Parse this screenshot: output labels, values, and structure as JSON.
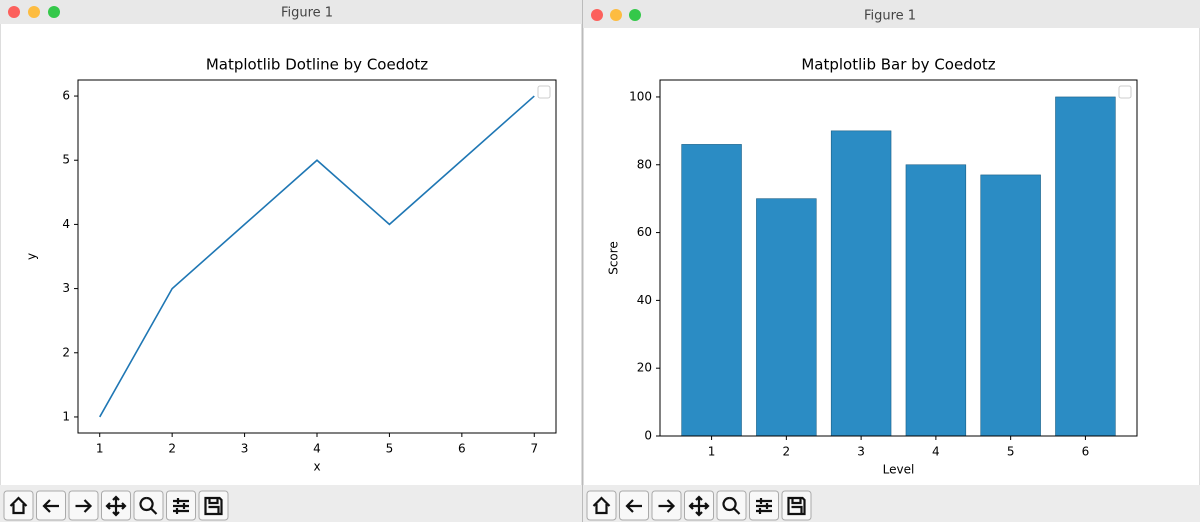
{
  "windows": [
    {
      "title": "Figure 1"
    },
    {
      "title": "Figure 1"
    }
  ],
  "chart_data": [
    {
      "type": "line",
      "title": "Matplotlib Dotline by Coedotz",
      "x_label": "x",
      "y_label": "y",
      "x": [
        1,
        2,
        3,
        4,
        5,
        6,
        7
      ],
      "y": [
        1,
        3,
        4,
        5,
        4,
        5,
        6
      ],
      "color": "#1f77b4",
      "xlim": [
        0.7,
        7.3
      ],
      "ylim": [
        0.75,
        6.25
      ],
      "xticks": [
        1,
        2,
        3,
        4,
        5,
        6,
        7
      ],
      "yticks": [
        1,
        2,
        3,
        4,
        5,
        6
      ],
      "legend": "upper right"
    },
    {
      "type": "bar",
      "title": "Matplotlib Bar by Coedotz",
      "x_label": "Level",
      "y_label": "Score",
      "x": [
        1,
        2,
        3,
        4,
        5,
        6
      ],
      "values": [
        86,
        70,
        90,
        80,
        77,
        100
      ],
      "color": "#2b8cc4",
      "xlim": [
        0.31,
        6.69
      ],
      "ylim": [
        0,
        105
      ],
      "xticks": [
        1,
        2,
        3,
        4,
        5,
        6
      ],
      "yticks": [
        0,
        20,
        40,
        60,
        80,
        100
      ],
      "legend": "upper right"
    }
  ]
}
